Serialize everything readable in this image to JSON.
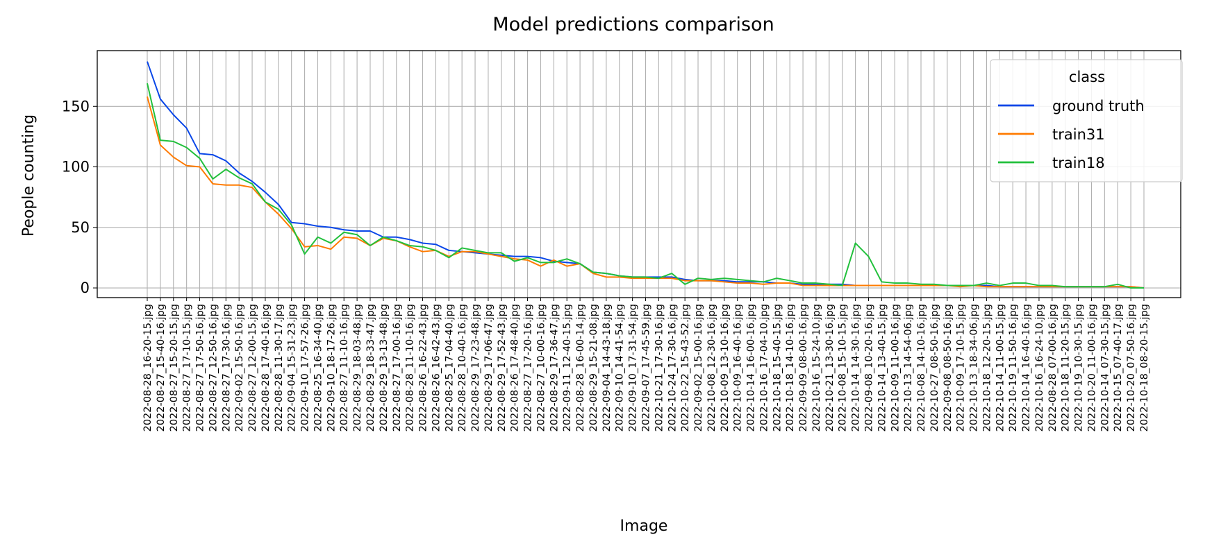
{
  "chart_data": {
    "type": "line",
    "title": "Model predictions comparison",
    "xlabel": "Image",
    "ylabel": "People counting",
    "ylim": [
      -8,
      196
    ],
    "yticks": [
      0,
      50,
      100,
      150
    ],
    "grid": true,
    "legend": {
      "title": "class",
      "placement": "top-right"
    },
    "categories": [
      "2022-08-28_16-20-15.jpg",
      "2022-08-27_15-40-16.jpg",
      "2022-08-27_15-20-15.jpg",
      "2022-08-27_17-10-15.jpg",
      "2022-08-27_17-50-16.jpg",
      "2022-08-27_12-50-16.jpg",
      "2022-08-27_17-30-16.jpg",
      "2022-09-02_15-50-16.jpg",
      "2022-08-27_12-00-15.jpg",
      "2022-08-28_17-40-16.jpg",
      "2022-08-28_11-30-17.jpg",
      "2022-09-04_15-31-23.jpg",
      "2022-09-10_17-57-26.jpg",
      "2022-08-25_16-34-40.jpg",
      "2022-09-10_18-17-26.jpg",
      "2022-08-27_11-10-16.jpg",
      "2022-08-29_18-03-48.jpg",
      "2022-08-29_18-33-47.jpg",
      "2022-08-29_13-13-48.jpg",
      "2022-08-27_17-00-16.jpg",
      "2022-08-28_11-10-16.jpg",
      "2022-08-26_16-22-43.jpg",
      "2022-08-26_16-42-43.jpg",
      "2022-08-25_17-04-40.jpg",
      "2022-08-28_10-40-16.jpg",
      "2022-08-29_17-23-48.jpg",
      "2022-08-29_17-06-47.jpg",
      "2022-08-29_17-52-43.jpg",
      "2022-08-26_17-48-40.jpg",
      "2022-08-27_17-20-16.jpg",
      "2022-08-27_10-00-16.jpg",
      "2022-08-29_17-36-47.jpg",
      "2022-09-11_12-40-15.jpg",
      "2022-08-28_16-00-14.jpg",
      "2022-08-29_15-21-08.jpg",
      "2022-09-04_14-43-18.jpg",
      "2022-09-10_14-41-54.jpg",
      "2022-09-10_17-31-54.jpg",
      "2022-09-07_17-45-59.jpg",
      "2022-10-21_17-30-16.jpg",
      "2022-10-24_17-30-16.jpg",
      "2022-10-22_15-43-52.jpg",
      "2022-09-02_15-00-16.jpg",
      "2022-10-08_12-30-16.jpg",
      "2022-10-09_13-10-16.jpg",
      "2022-10-09_16-40-16.jpg",
      "2022-10-14_16-00-16.jpg",
      "2022-10-16_17-04-10.jpg",
      "2022-10-18_15-40-15.jpg",
      "2022-10-18_14-10-16.jpg",
      "2022-09-09_08-00-16.jpg",
      "2022-10-16_15-24-10.jpg",
      "2022-10-21_13-30-16.jpg",
      "2022-10-08_15-10-15.jpg",
      "2022-10-14_14-30-16.jpg",
      "2022-09-08_10-20-16.jpg",
      "2022-10-14_13-40-15.jpg",
      "2022-10-09_11-00-16.jpg",
      "2022-10-13_14-54-06.jpg",
      "2022-10-08_14-10-16.jpg",
      "2022-10-27_08-50-16.jpg",
      "2022-09-08_08-50-16.jpg",
      "2022-10-09_17-10-15.jpg",
      "2022-10-13_18-34-06.jpg",
      "2022-10-18_12-20-15.jpg",
      "2022-10-14_11-00-15.jpg",
      "2022-10-19_11-50-16.jpg",
      "2022-10-14_16-40-16.jpg",
      "2022-10-16_16-24-10.jpg",
      "2022-08-28_07-00-16.jpg",
      "2022-10-18_11-20-15.jpg",
      "2022-10-19_10-30-15.jpg",
      "2022-10-20_11-00-16.jpg",
      "2022-10-14_07-30-15.jpg",
      "2022-10-15_07-40-17.jpg",
      "2022-10-20_07-50-16.jpg",
      "2022-10-18_08-20-15.jpg"
    ],
    "series": [
      {
        "name": "ground truth",
        "color": "#0a47e8",
        "values": [
          187,
          156,
          143,
          132,
          111,
          110,
          105,
          95,
          88,
          79,
          69,
          54,
          53,
          51,
          50,
          48,
          47,
          47,
          42,
          42,
          40,
          37,
          36,
          31,
          30,
          29,
          28,
          27,
          26,
          26,
          25,
          22,
          21,
          20,
          13,
          12,
          10,
          9,
          9,
          9,
          9,
          7,
          6,
          6,
          6,
          5,
          5,
          5,
          4,
          4,
          3,
          3,
          3,
          3,
          2,
          2,
          2,
          2,
          2,
          2,
          2,
          2,
          2,
          2,
          2,
          1,
          1,
          1,
          1,
          1,
          1,
          1,
          1,
          1,
          1,
          1,
          0
        ]
      },
      {
        "name": "train31",
        "color": "#ff7b00",
        "values": [
          158,
          118,
          108,
          101,
          100,
          86,
          85,
          85,
          83,
          71,
          61,
          49,
          34,
          35,
          32,
          42,
          41,
          35,
          41,
          39,
          34,
          30,
          31,
          26,
          30,
          30,
          28,
          26,
          24,
          23,
          18,
          23,
          18,
          20,
          12,
          9,
          9,
          8,
          8,
          8,
          8,
          6,
          6,
          6,
          5,
          4,
          4,
          3,
          4,
          4,
          2,
          2,
          2,
          2,
          2,
          2,
          2,
          2,
          2,
          2,
          2,
          2,
          1,
          2,
          1,
          1,
          1,
          1,
          1,
          1,
          1,
          1,
          1,
          1,
          1,
          1,
          0
        ]
      },
      {
        "name": "train18",
        "color": "#22c03c",
        "values": [
          169,
          122,
          121,
          116,
          107,
          90,
          98,
          91,
          86,
          71,
          65,
          52,
          28,
          42,
          37,
          46,
          44,
          35,
          42,
          39,
          35,
          34,
          31,
          25,
          33,
          31,
          29,
          29,
          22,
          25,
          21,
          21,
          24,
          20,
          13,
          12,
          10,
          9,
          9,
          8,
          12,
          3,
          8,
          7,
          8,
          7,
          6,
          5,
          8,
          6,
          4,
          4,
          3,
          2,
          37,
          26,
          5,
          4,
          4,
          3,
          3,
          2,
          2,
          2,
          4,
          2,
          4,
          4,
          2,
          2,
          1,
          1,
          1,
          1,
          3,
          0,
          0
        ]
      }
    ]
  }
}
